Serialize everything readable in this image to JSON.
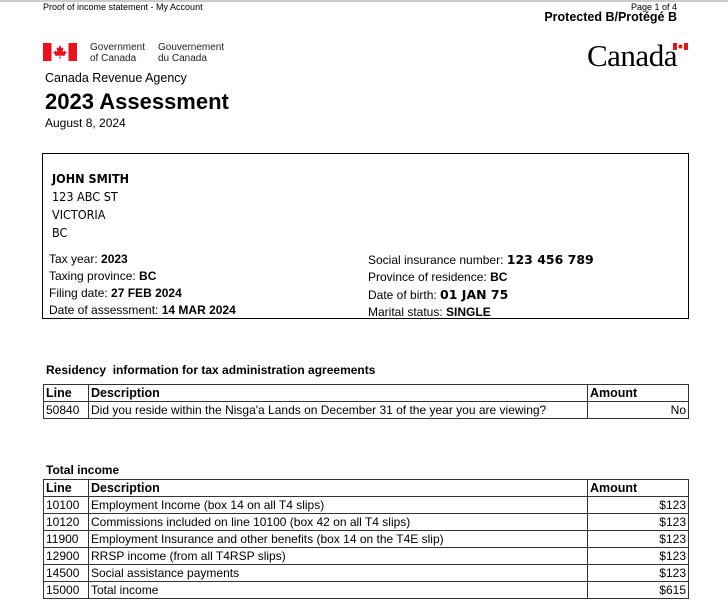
{
  "header": {
    "doc_label": "Proof of income statement - My Account",
    "page": "Page 1 of 4",
    "protected": "Protected B/Protégé B"
  },
  "gov": {
    "en": [
      "Government",
      "of Canada"
    ],
    "fr": [
      "Gouvernement",
      "du Canada"
    ],
    "wordmark": "Canada",
    "agency": "Canada Revenue Agency"
  },
  "title": "2023 Assessment",
  "date": "August 8, 2024",
  "taxpayer": {
    "name": "JOHN SMITH",
    "address": [
      "123 ABC ST",
      "VICTORIA",
      "BC"
    ]
  },
  "info_left": [
    {
      "label": "Tax year: ",
      "value": "2023"
    },
    {
      "label": "Taxing province: ",
      "value": "BC"
    },
    {
      "label": "Filing date: ",
      "value": "27 FEB 2024"
    },
    {
      "label": "Date of assessment: ",
      "value": "14 MAR 2024"
    }
  ],
  "info_right": [
    {
      "label": "Social insurance number: ",
      "value": "123 456 789"
    },
    {
      "label": "Province of residence: ",
      "value": "BC"
    },
    {
      "label": "Date of birth: ",
      "value": "01 JAN 75"
    },
    {
      "label": "Marital status: ",
      "value": "SINGLE"
    }
  ],
  "residency": {
    "title": "Residency  information for tax administration agreements",
    "headers": [
      "Line",
      "Description",
      "Amount"
    ],
    "rows": [
      [
        "50840",
        "Did you reside within the Nisga'a Lands on December 31 of the year you are viewing?",
        "No"
      ]
    ]
  },
  "income": {
    "title": "Total income",
    "headers": [
      "Line",
      "Description",
      "Amount"
    ],
    "rows": [
      [
        "10100",
        "Employment Income (box 14 on all T4 slips)",
        "$123"
      ],
      [
        "10120",
        "Commissions included on line 10100 (box 42 on all T4 slips)",
        "$123"
      ],
      [
        "11900",
        "Employment Insurance and other benefits (box 14 on the T4E slip)",
        "$123"
      ],
      [
        "12900",
        "RRSP income (from all T4RSP slips)",
        "$123"
      ],
      [
        "14500",
        "Social assistance payments",
        "$123"
      ],
      [
        "15000",
        "Total income",
        "$615"
      ]
    ]
  },
  "colors": {
    "flag_red": "#e8111c"
  }
}
